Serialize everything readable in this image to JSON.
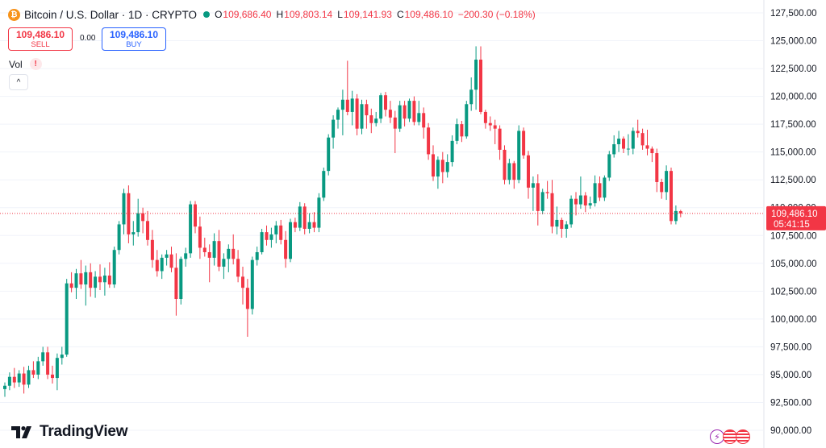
{
  "header": {
    "title": "Bitcoin / U.S. Dollar · 1D · CRYPTO",
    "coin_icon_glyph": "₿",
    "status_dot_color": "#089981",
    "ohlc": {
      "o_label": "O",
      "o_value": "109,686.40",
      "h_label": "H",
      "h_value": "109,803.14",
      "l_label": "L",
      "l_value": "109,141.93",
      "c_label": "C",
      "c_value": "109,486.10",
      "change": "−200.30 (−0.18%)"
    }
  },
  "trade": {
    "sell_price": "109,486.10",
    "sell_label": "SELL",
    "spread": "0.00",
    "buy_price": "109,486.10",
    "buy_label": "BUY"
  },
  "volume": {
    "label": "Vol",
    "warning_icon": "!"
  },
  "collapse_button_glyph": "^",
  "branding": {
    "name": "TradingView"
  },
  "price_tag": {
    "price": "109,486.10",
    "countdown": "05:41:15",
    "color": "#f23645"
  },
  "colors": {
    "up": "#089981",
    "down": "#f23645",
    "axis_text": "#131722"
  },
  "chart_data": {
    "type": "candlestick",
    "y_ticks": [
      90000,
      92500,
      95000,
      97500,
      100000,
      102500,
      105000,
      107500,
      110000,
      112500,
      115000,
      117500,
      120000,
      122500,
      125000,
      127500
    ],
    "y_tick_labels": [
      "90,000.00",
      "92,500.00",
      "95,000.00",
      "97,500.00",
      "100,000.00",
      "102,500.00",
      "105,000.00",
      "107,500.00",
      "110,000.00",
      "112,500.00",
      "115,000.00",
      "117,500.00",
      "120,000.00",
      "122,500.00",
      "125,000.00",
      "127,500.00"
    ],
    "ylim": [
      89500,
      128500
    ],
    "last_price": 109486.1,
    "candles": [
      {
        "o": 93700,
        "h": 94300,
        "l": 93000,
        "c": 94000
      },
      {
        "o": 94000,
        "h": 95200,
        "l": 93600,
        "c": 94800
      },
      {
        "o": 94800,
        "h": 95600,
        "l": 93800,
        "c": 94300
      },
      {
        "o": 94300,
        "h": 95400,
        "l": 93900,
        "c": 95100
      },
      {
        "o": 95100,
        "h": 95700,
        "l": 93300,
        "c": 94100
      },
      {
        "o": 94100,
        "h": 95800,
        "l": 93800,
        "c": 95400
      },
      {
        "o": 95400,
        "h": 96200,
        "l": 94700,
        "c": 95000
      },
      {
        "o": 95000,
        "h": 96600,
        "l": 94600,
        "c": 96200
      },
      {
        "o": 96200,
        "h": 97500,
        "l": 95800,
        "c": 97000
      },
      {
        "o": 97000,
        "h": 97500,
        "l": 94600,
        "c": 95000
      },
      {
        "o": 95000,
        "h": 95800,
        "l": 94200,
        "c": 94700
      },
      {
        "o": 94700,
        "h": 96900,
        "l": 93600,
        "c": 96500
      },
      {
        "o": 96500,
        "h": 97500,
        "l": 95900,
        "c": 96800
      },
      {
        "o": 96800,
        "h": 103600,
        "l": 96600,
        "c": 103200
      },
      {
        "o": 103200,
        "h": 104200,
        "l": 102400,
        "c": 102800
      },
      {
        "o": 102800,
        "h": 104500,
        "l": 101800,
        "c": 104100
      },
      {
        "o": 104100,
        "h": 105300,
        "l": 102700,
        "c": 103100
      },
      {
        "o": 103100,
        "h": 104800,
        "l": 101200,
        "c": 104200
      },
      {
        "o": 104200,
        "h": 105000,
        "l": 102000,
        "c": 102800
      },
      {
        "o": 102800,
        "h": 104300,
        "l": 101900,
        "c": 103800
      },
      {
        "o": 103800,
        "h": 104900,
        "l": 102600,
        "c": 103300
      },
      {
        "o": 103300,
        "h": 104600,
        "l": 102100,
        "c": 103900
      },
      {
        "o": 103900,
        "h": 105100,
        "l": 102800,
        "c": 103100
      },
      {
        "o": 103100,
        "h": 106500,
        "l": 102800,
        "c": 106200
      },
      {
        "o": 106200,
        "h": 108800,
        "l": 105800,
        "c": 108500
      },
      {
        "o": 108500,
        "h": 111700,
        "l": 107600,
        "c": 111300
      },
      {
        "o": 111300,
        "h": 112000,
        "l": 106800,
        "c": 107600
      },
      {
        "o": 107600,
        "h": 108800,
        "l": 106600,
        "c": 107800
      },
      {
        "o": 107800,
        "h": 110800,
        "l": 107400,
        "c": 109500
      },
      {
        "o": 109500,
        "h": 110000,
        "l": 107700,
        "c": 108800
      },
      {
        "o": 108800,
        "h": 109700,
        "l": 106600,
        "c": 107100
      },
      {
        "o": 107100,
        "h": 108000,
        "l": 104600,
        "c": 105300
      },
      {
        "o": 105300,
        "h": 106200,
        "l": 103800,
        "c": 104300
      },
      {
        "o": 104300,
        "h": 105800,
        "l": 103600,
        "c": 105500
      },
      {
        "o": 105500,
        "h": 106200,
        "l": 104800,
        "c": 105800
      },
      {
        "o": 105800,
        "h": 106500,
        "l": 104200,
        "c": 104600
      },
      {
        "o": 104600,
        "h": 105900,
        "l": 100300,
        "c": 101800
      },
      {
        "o": 101800,
        "h": 105600,
        "l": 101300,
        "c": 105400
      },
      {
        "o": 105400,
        "h": 106400,
        "l": 104700,
        "c": 105900
      },
      {
        "o": 105900,
        "h": 110600,
        "l": 105500,
        "c": 110300
      },
      {
        "o": 110300,
        "h": 110600,
        "l": 107700,
        "c": 108300
      },
      {
        "o": 108300,
        "h": 109200,
        "l": 105400,
        "c": 106400
      },
      {
        "o": 106400,
        "h": 107300,
        "l": 105600,
        "c": 106000
      },
      {
        "o": 106000,
        "h": 106700,
        "l": 103300,
        "c": 105500
      },
      {
        "o": 105500,
        "h": 107700,
        "l": 104800,
        "c": 107000
      },
      {
        "o": 107000,
        "h": 108000,
        "l": 104300,
        "c": 104700
      },
      {
        "o": 104700,
        "h": 105900,
        "l": 103600,
        "c": 105400
      },
      {
        "o": 105400,
        "h": 106700,
        "l": 104200,
        "c": 106300
      },
      {
        "o": 106300,
        "h": 107600,
        "l": 104900,
        "c": 105400
      },
      {
        "o": 105400,
        "h": 106200,
        "l": 103300,
        "c": 103800
      },
      {
        "o": 103800,
        "h": 104700,
        "l": 101300,
        "c": 102800
      },
      {
        "o": 102800,
        "h": 103600,
        "l": 98400,
        "c": 100900
      },
      {
        "o": 100900,
        "h": 105600,
        "l": 100400,
        "c": 105300
      },
      {
        "o": 105300,
        "h": 106500,
        "l": 104800,
        "c": 106000
      },
      {
        "o": 106000,
        "h": 108100,
        "l": 105800,
        "c": 107800
      },
      {
        "o": 107800,
        "h": 108400,
        "l": 106600,
        "c": 107100
      },
      {
        "o": 107100,
        "h": 108200,
        "l": 106400,
        "c": 107600
      },
      {
        "o": 107600,
        "h": 108800,
        "l": 106800,
        "c": 108400
      },
      {
        "o": 108400,
        "h": 108900,
        "l": 106700,
        "c": 107100
      },
      {
        "o": 107100,
        "h": 107900,
        "l": 104600,
        "c": 105400
      },
      {
        "o": 105400,
        "h": 109000,
        "l": 105100,
        "c": 108700
      },
      {
        "o": 108700,
        "h": 109100,
        "l": 107800,
        "c": 108200
      },
      {
        "o": 108200,
        "h": 110500,
        "l": 107900,
        "c": 110100
      },
      {
        "o": 110100,
        "h": 110400,
        "l": 107600,
        "c": 108100
      },
      {
        "o": 108100,
        "h": 109500,
        "l": 107700,
        "c": 108700
      },
      {
        "o": 108700,
        "h": 109600,
        "l": 107800,
        "c": 108200
      },
      {
        "o": 108200,
        "h": 111300,
        "l": 107800,
        "c": 110900
      },
      {
        "o": 110900,
        "h": 113600,
        "l": 110600,
        "c": 113300
      },
      {
        "o": 113300,
        "h": 116600,
        "l": 112900,
        "c": 116300
      },
      {
        "o": 116300,
        "h": 118300,
        "l": 115300,
        "c": 117900
      },
      {
        "o": 117900,
        "h": 119000,
        "l": 117100,
        "c": 118800
      },
      {
        "o": 118800,
        "h": 120600,
        "l": 116500,
        "c": 119700
      },
      {
        "o": 119700,
        "h": 123200,
        "l": 118300,
        "c": 118600
      },
      {
        "o": 118600,
        "h": 120500,
        "l": 117400,
        "c": 119800
      },
      {
        "o": 119800,
        "h": 120200,
        "l": 116500,
        "c": 117100
      },
      {
        "o": 117100,
        "h": 119700,
        "l": 116600,
        "c": 119300
      },
      {
        "o": 119300,
        "h": 119700,
        "l": 117100,
        "c": 118300
      },
      {
        "o": 118300,
        "h": 118900,
        "l": 116700,
        "c": 117600
      },
      {
        "o": 117600,
        "h": 118600,
        "l": 117300,
        "c": 118000
      },
      {
        "o": 118000,
        "h": 120300,
        "l": 117600,
        "c": 120100
      },
      {
        "o": 120100,
        "h": 120400,
        "l": 118200,
        "c": 118800
      },
      {
        "o": 118800,
        "h": 119600,
        "l": 117600,
        "c": 118100
      },
      {
        "o": 118100,
        "h": 118700,
        "l": 114900,
        "c": 117100
      },
      {
        "o": 117100,
        "h": 119600,
        "l": 116800,
        "c": 119200
      },
      {
        "o": 119200,
        "h": 119600,
        "l": 117300,
        "c": 118000
      },
      {
        "o": 118000,
        "h": 119800,
        "l": 117700,
        "c": 119600
      },
      {
        "o": 119600,
        "h": 120000,
        "l": 117400,
        "c": 117700
      },
      {
        "o": 117700,
        "h": 119600,
        "l": 117400,
        "c": 118500
      },
      {
        "o": 118500,
        "h": 119000,
        "l": 116200,
        "c": 117200
      },
      {
        "o": 117200,
        "h": 117600,
        "l": 114300,
        "c": 114800
      },
      {
        "o": 114800,
        "h": 115600,
        "l": 112400,
        "c": 112800
      },
      {
        "o": 112800,
        "h": 114600,
        "l": 111700,
        "c": 114300
      },
      {
        "o": 114300,
        "h": 115000,
        "l": 112200,
        "c": 113200
      },
      {
        "o": 113200,
        "h": 114800,
        "l": 112700,
        "c": 114100
      },
      {
        "o": 114100,
        "h": 116500,
        "l": 113700,
        "c": 116000
      },
      {
        "o": 116000,
        "h": 118000,
        "l": 115700,
        "c": 117500
      },
      {
        "o": 117500,
        "h": 117800,
        "l": 115900,
        "c": 116400
      },
      {
        "o": 116400,
        "h": 119600,
        "l": 116200,
        "c": 119300
      },
      {
        "o": 119300,
        "h": 121700,
        "l": 118700,
        "c": 120600
      },
      {
        "o": 120600,
        "h": 124500,
        "l": 118800,
        "c": 123300
      },
      {
        "o": 123300,
        "h": 124500,
        "l": 118400,
        "c": 118600
      },
      {
        "o": 118600,
        "h": 118800,
        "l": 117100,
        "c": 117600
      },
      {
        "o": 117600,
        "h": 118200,
        "l": 116900,
        "c": 117400
      },
      {
        "o": 117400,
        "h": 117900,
        "l": 115700,
        "c": 117100
      },
      {
        "o": 117100,
        "h": 117400,
        "l": 114300,
        "c": 115200
      },
      {
        "o": 115200,
        "h": 115600,
        "l": 112100,
        "c": 112500
      },
      {
        "o": 112500,
        "h": 114400,
        "l": 112100,
        "c": 114000
      },
      {
        "o": 114000,
        "h": 114200,
        "l": 111700,
        "c": 112500
      },
      {
        "o": 112500,
        "h": 117400,
        "l": 112200,
        "c": 116900
      },
      {
        "o": 116900,
        "h": 117200,
        "l": 114400,
        "c": 114700
      },
      {
        "o": 114700,
        "h": 115100,
        "l": 110800,
        "c": 111800
      },
      {
        "o": 111800,
        "h": 112800,
        "l": 109700,
        "c": 112200
      },
      {
        "o": 112200,
        "h": 113000,
        "l": 108400,
        "c": 109700
      },
      {
        "o": 109700,
        "h": 111700,
        "l": 109400,
        "c": 111400
      },
      {
        "o": 111400,
        "h": 112400,
        "l": 110800,
        "c": 111300
      },
      {
        "o": 111300,
        "h": 112500,
        "l": 107700,
        "c": 108300
      },
      {
        "o": 108300,
        "h": 110100,
        "l": 107600,
        "c": 108900
      },
      {
        "o": 108900,
        "h": 109100,
        "l": 107300,
        "c": 108100
      },
      {
        "o": 108100,
        "h": 108800,
        "l": 107300,
        "c": 108500
      },
      {
        "o": 108500,
        "h": 111100,
        "l": 108200,
        "c": 110800
      },
      {
        "o": 110800,
        "h": 111400,
        "l": 109300,
        "c": 110300
      },
      {
        "o": 110300,
        "h": 112800,
        "l": 109900,
        "c": 111100
      },
      {
        "o": 111100,
        "h": 111400,
        "l": 109600,
        "c": 110200
      },
      {
        "o": 110200,
        "h": 111000,
        "l": 109900,
        "c": 110400
      },
      {
        "o": 110400,
        "h": 112900,
        "l": 110100,
        "c": 112200
      },
      {
        "o": 112200,
        "h": 112800,
        "l": 110600,
        "c": 110900
      },
      {
        "o": 110900,
        "h": 112900,
        "l": 110600,
        "c": 112700
      },
      {
        "o": 112700,
        "h": 115100,
        "l": 112400,
        "c": 114800
      },
      {
        "o": 114800,
        "h": 116500,
        "l": 114500,
        "c": 115700
      },
      {
        "o": 115700,
        "h": 116900,
        "l": 115000,
        "c": 116200
      },
      {
        "o": 116200,
        "h": 116400,
        "l": 114900,
        "c": 115300
      },
      {
        "o": 115300,
        "h": 116600,
        "l": 114700,
        "c": 115300
      },
      {
        "o": 115300,
        "h": 117200,
        "l": 114800,
        "c": 116900
      },
      {
        "o": 116900,
        "h": 117900,
        "l": 116300,
        "c": 116700
      },
      {
        "o": 116700,
        "h": 117100,
        "l": 115200,
        "c": 115600
      },
      {
        "o": 115600,
        "h": 117000,
        "l": 114700,
        "c": 115300
      },
      {
        "o": 115300,
        "h": 115500,
        "l": 114100,
        "c": 114900
      },
      {
        "o": 114900,
        "h": 115300,
        "l": 111400,
        "c": 112300
      },
      {
        "o": 112300,
        "h": 112600,
        "l": 110800,
        "c": 111400
      },
      {
        "o": 111400,
        "h": 113800,
        "l": 110700,
        "c": 113300
      },
      {
        "o": 113300,
        "h": 113600,
        "l": 108500,
        "c": 108800
      },
      {
        "o": 108800,
        "h": 110200,
        "l": 108500,
        "c": 109700
      },
      {
        "o": 109686.4,
        "h": 109803.14,
        "l": 109141.93,
        "c": 109486.1
      }
    ]
  }
}
